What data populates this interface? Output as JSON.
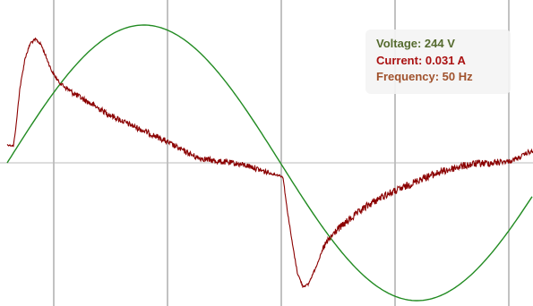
{
  "readout": {
    "voltage_text": "Voltage: 244 V",
    "current_text": "Current: 0.031 A",
    "frequency_text": "Frequency: 50 Hz"
  },
  "colors": {
    "voltage": "#556b2f",
    "current": "#aa1111",
    "frequency": "#a0522d",
    "voltage_trace": "#228b22",
    "current_trace": "#8b0000",
    "grid": "#999999",
    "panel_bg": "#f4f4f4"
  }
}
